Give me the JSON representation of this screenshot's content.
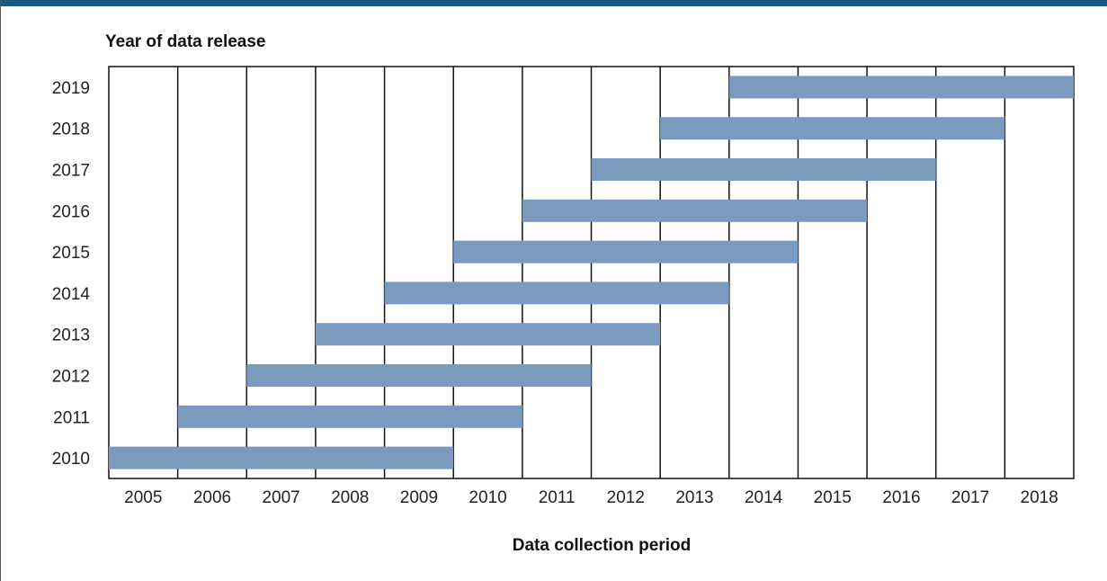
{
  "chart_data": {
    "type": "bar",
    "orientation": "horizontal-range",
    "title": "",
    "ylabel": "Year of data release",
    "xlabel": "Data collection period",
    "x_ticks": [
      "2005",
      "2006",
      "2007",
      "2008",
      "2009",
      "2010",
      "2011",
      "2012",
      "2013",
      "2014",
      "2015",
      "2016",
      "2017",
      "2018"
    ],
    "y_ticks": [
      "2019",
      "2018",
      "2017",
      "2016",
      "2015",
      "2014",
      "2013",
      "2012",
      "2011",
      "2010"
    ],
    "ranges": [
      {
        "release": "2010",
        "start": 2005,
        "end": 2009
      },
      {
        "release": "2011",
        "start": 2006,
        "end": 2010
      },
      {
        "release": "2012",
        "start": 2007,
        "end": 2011
      },
      {
        "release": "2013",
        "start": 2008,
        "end": 2012
      },
      {
        "release": "2014",
        "start": 2009,
        "end": 2013
      },
      {
        "release": "2015",
        "start": 2010,
        "end": 2014
      },
      {
        "release": "2016",
        "start": 2011,
        "end": 2015
      },
      {
        "release": "2017",
        "start": 2012,
        "end": 2016
      },
      {
        "release": "2018",
        "start": 2013,
        "end": 2017
      },
      {
        "release": "2019",
        "start": 2014,
        "end": 2018
      }
    ],
    "bar_color": "#7a9bbf",
    "grid": "vertical",
    "legend": "none"
  }
}
